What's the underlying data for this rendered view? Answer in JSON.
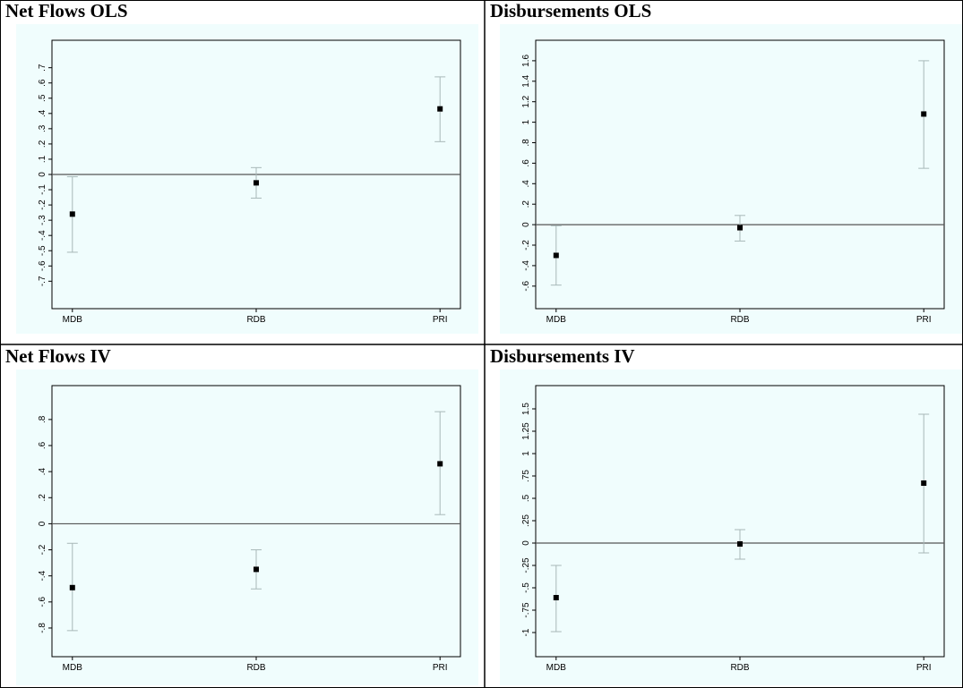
{
  "colors": {
    "plot_bg": "#f0fdfd",
    "frame": "#000000",
    "zero_line": "#555555",
    "ci_line": "#a8b8b8",
    "marker": "#000000"
  },
  "charts": [
    {
      "title": "Net Flows OLS",
      "chart_data": {
        "type": "scatter",
        "subtype": "coefficient-plot-with-confidence-intervals",
        "categories": [
          "MDB",
          "RDB",
          "PRI"
        ],
        "estimates": [
          -0.26,
          -0.055,
          0.43
        ],
        "ci_low": [
          -0.51,
          -0.155,
          0.215
        ],
        "ci_high": [
          -0.015,
          0.045,
          0.64
        ],
        "ylim": [
          -0.88,
          0.88
        ],
        "yticks": [
          -0.7,
          -0.6,
          -0.5,
          -0.4,
          -0.3,
          -0.2,
          -0.1,
          0,
          0.1,
          0.2,
          0.3,
          0.4,
          0.5,
          0.6,
          0.7
        ],
        "ytick_labels": [
          "-.7",
          "-.6",
          "-.5",
          "-.4",
          "-.3",
          "-.2",
          "-.1",
          "0",
          ".1",
          ".2",
          ".3",
          ".4",
          ".5",
          ".6",
          ".7"
        ],
        "zero_line": true,
        "title": "",
        "xlabel": "",
        "ylabel": ""
      }
    },
    {
      "title": "Disbursements OLS",
      "chart_data": {
        "type": "scatter",
        "subtype": "coefficient-plot-with-confidence-intervals",
        "categories": [
          "MDB",
          "RDB",
          "PRI"
        ],
        "estimates": [
          -0.3,
          -0.03,
          1.08
        ],
        "ci_low": [
          -0.59,
          -0.16,
          0.55
        ],
        "ci_high": [
          -0.01,
          0.09,
          1.6
        ],
        "ylim": [
          -0.82,
          1.8
        ],
        "yticks": [
          -0.6,
          -0.4,
          -0.2,
          0,
          0.2,
          0.4,
          0.6,
          0.8,
          1,
          1.2,
          1.4,
          1.6
        ],
        "ytick_labels": [
          "-.6",
          "-.4",
          "-.2",
          "0",
          ".2",
          ".4",
          ".6",
          ".8",
          "1",
          "1.2",
          "1.4",
          "1.6"
        ],
        "zero_line": true,
        "title": "",
        "xlabel": "",
        "ylabel": ""
      }
    },
    {
      "title": "Net Flows IV",
      "chart_data": {
        "type": "scatter",
        "subtype": "coefficient-plot-with-confidence-intervals",
        "categories": [
          "MDB",
          "RDB",
          "PRI"
        ],
        "estimates": [
          -0.49,
          -0.35,
          0.46
        ],
        "ci_low": [
          -0.82,
          -0.5,
          0.07
        ],
        "ci_high": [
          -0.15,
          -0.2,
          0.86
        ],
        "ylim": [
          -1.02,
          1.06
        ],
        "yticks": [
          -0.8,
          -0.6,
          -0.4,
          -0.2,
          0,
          0.2,
          0.4,
          0.6,
          0.8
        ],
        "ytick_labels": [
          "-.8",
          "-.6",
          "-.4",
          "-.2",
          "0",
          ".2",
          ".4",
          ".6",
          ".8"
        ],
        "zero_line": true,
        "title": "",
        "xlabel": "",
        "ylabel": ""
      }
    },
    {
      "title": "Disbursements IV",
      "chart_data": {
        "type": "scatter",
        "subtype": "coefficient-plot-with-confidence-intervals",
        "categories": [
          "MDB",
          "RDB",
          "PRI"
        ],
        "estimates": [
          -0.61,
          -0.01,
          0.67
        ],
        "ci_low": [
          -0.99,
          -0.18,
          -0.11
        ],
        "ci_high": [
          -0.25,
          0.15,
          1.44
        ],
        "ylim": [
          -1.27,
          1.76
        ],
        "yticks": [
          -1,
          -0.75,
          -0.5,
          -0.25,
          0,
          0.25,
          0.5,
          0.75,
          1,
          1.25,
          1.5
        ],
        "ytick_labels": [
          "-1",
          "-.75",
          "-.5",
          "-.25",
          "0",
          ".25",
          ".5",
          ".75",
          "1",
          "1.25",
          "1.5"
        ],
        "zero_line": true,
        "title": "",
        "xlabel": "",
        "ylabel": ""
      }
    }
  ]
}
